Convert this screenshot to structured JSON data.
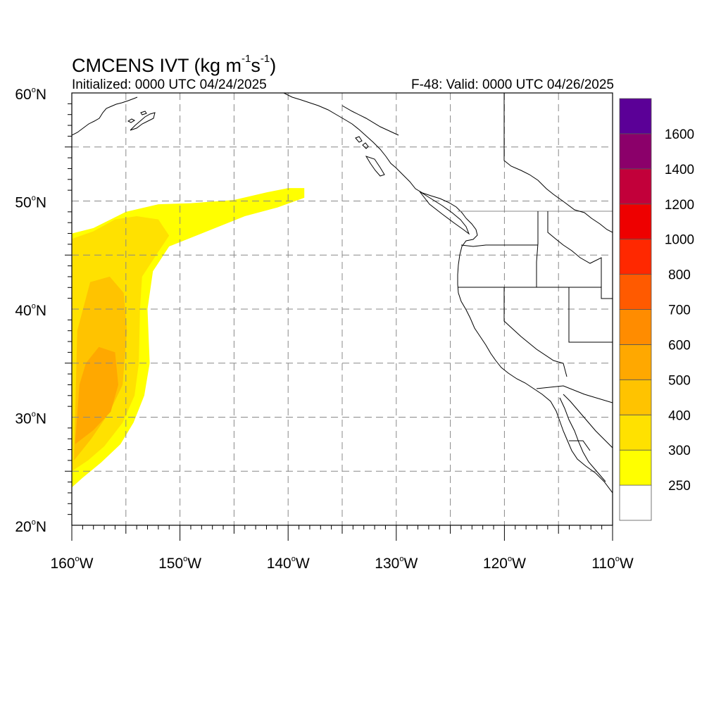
{
  "title": {
    "model": "CMCENS IVT (kg m",
    "exp1": "-1",
    "mid": "s",
    "exp2": "-1",
    "close": ")"
  },
  "subtitle_left": "Initialized: 0000 UTC 04/24/2025",
  "subtitle_right": "F-48: Valid: 0000 UTC 04/26/2025",
  "axes": {
    "lat_labels": [
      "60",
      "50",
      "40",
      "30",
      "20"
    ],
    "lat_suffix": "N",
    "lon_labels": [
      "160",
      "150",
      "140",
      "130",
      "120",
      "110"
    ],
    "lon_suffix": "W",
    "lat_range": [
      20,
      60
    ],
    "lon_range": [
      -160,
      -110
    ]
  },
  "colorbar": {
    "labels": [
      "250",
      "300",
      "400",
      "500",
      "600",
      "700",
      "800",
      "1000",
      "1200",
      "1400",
      "1600"
    ],
    "colors": [
      "#ffffff",
      "#ffff00",
      "#ffe100",
      "#ffc300",
      "#ffa800",
      "#ff8c00",
      "#ff5a00",
      "#ff2800",
      "#ee0000",
      "#c2003a",
      "#8b006a",
      "#5b0097"
    ]
  },
  "chart_data": {
    "type": "heatmap",
    "variable": "IVT",
    "units": "kg m-1 s-1",
    "plume": [
      {
        "level": 250,
        "color": "#ffff00",
        "polygon": [
          [
            -160,
            23.5
          ],
          [
            -160,
            47
          ],
          [
            -158,
            47.5
          ],
          [
            -155,
            49
          ],
          [
            -152,
            49.7
          ],
          [
            -149,
            49.8
          ],
          [
            -145,
            50.1
          ],
          [
            -142,
            50.8
          ],
          [
            -140,
            51.2
          ],
          [
            -138.5,
            51.2
          ],
          [
            -138.5,
            50.3
          ],
          [
            -141,
            49.4
          ],
          [
            -144,
            48.6
          ],
          [
            -148,
            47
          ],
          [
            -151,
            45.8
          ],
          [
            -152.5,
            43.5
          ],
          [
            -153,
            40
          ],
          [
            -152.8,
            35
          ],
          [
            -153.3,
            32
          ],
          [
            -154.3,
            29.5
          ],
          [
            -155.5,
            27.5
          ],
          [
            -157.3,
            25.8
          ],
          [
            -159,
            24.4
          ]
        ]
      },
      {
        "level": 300,
        "color": "#ffe100",
        "polygon": [
          [
            -160,
            25
          ],
          [
            -160,
            46.5
          ],
          [
            -158,
            47.2
          ],
          [
            -156,
            48.3
          ],
          [
            -154,
            48.6
          ],
          [
            -152,
            48.3
          ],
          [
            -151,
            46.8
          ],
          [
            -152.2,
            45
          ],
          [
            -153.5,
            43
          ],
          [
            -153.7,
            40
          ],
          [
            -153.8,
            35
          ],
          [
            -154.2,
            32
          ],
          [
            -155.3,
            29.5
          ],
          [
            -157,
            27.3
          ],
          [
            -158.5,
            26
          ]
        ]
      },
      {
        "level": 400,
        "color": "#ffc300",
        "polygon": [
          [
            -159.8,
            26
          ],
          [
            -159.5,
            38
          ],
          [
            -158.3,
            42.5
          ],
          [
            -156.5,
            43
          ],
          [
            -155.2,
            41.5
          ],
          [
            -154.9,
            38
          ],
          [
            -155.3,
            33
          ],
          [
            -156.5,
            30.5
          ],
          [
            -158.2,
            28
          ]
        ]
      },
      {
        "level": 500,
        "color": "#ffa800",
        "polygon": [
          [
            -159.7,
            27.5
          ],
          [
            -159.3,
            33
          ],
          [
            -158.7,
            35
          ],
          [
            -157.5,
            36.5
          ],
          [
            -156,
            36
          ],
          [
            -155.7,
            33
          ],
          [
            -156.4,
            30.5
          ],
          [
            -158,
            28.8
          ]
        ]
      }
    ]
  }
}
